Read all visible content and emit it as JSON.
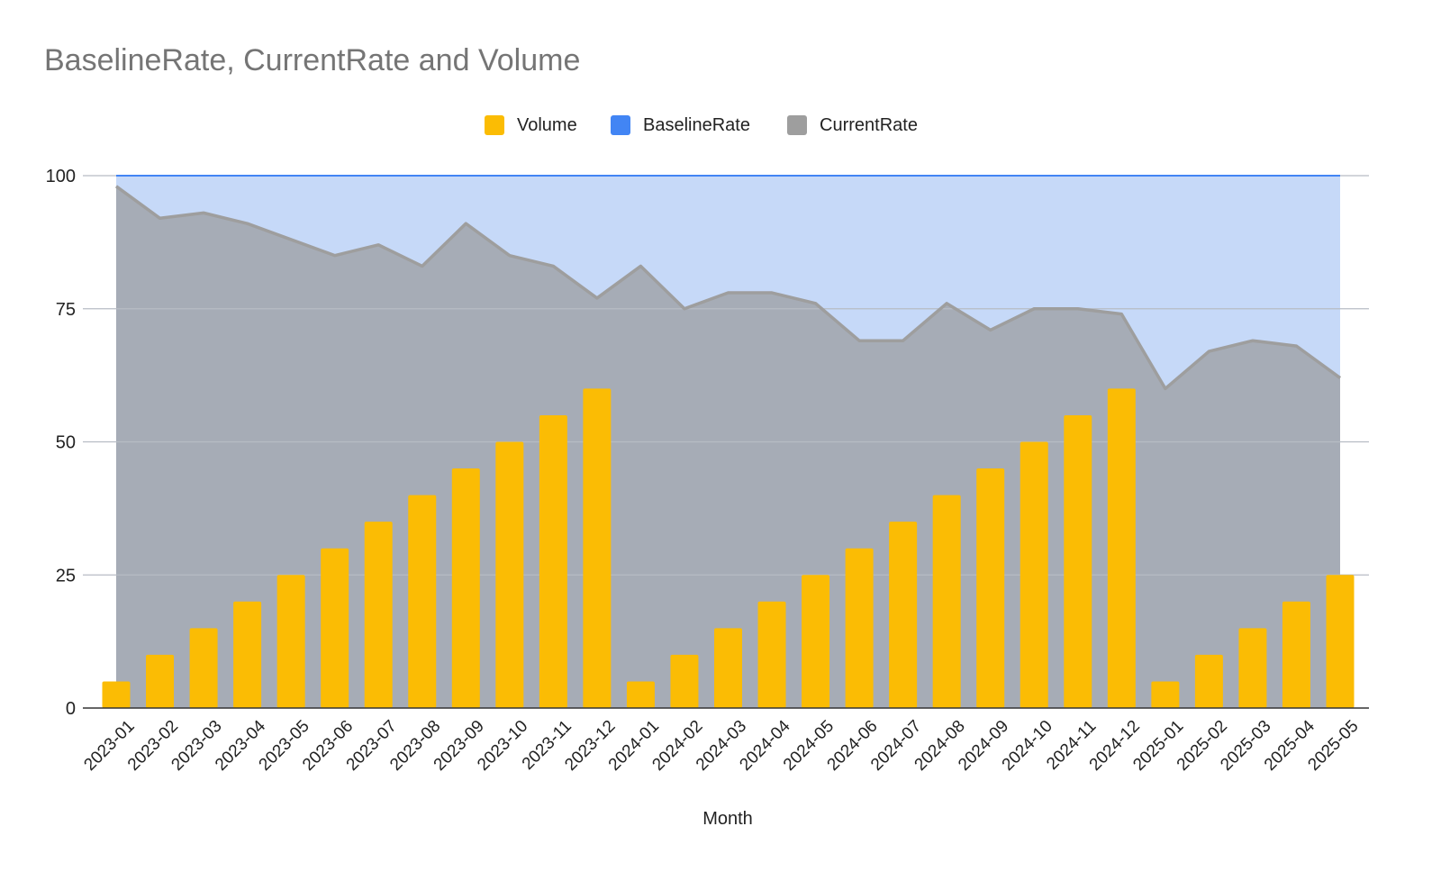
{
  "chart_data": {
    "type": "combo",
    "title": "BaselineRate, CurrentRate and Volume",
    "xlabel": "Month",
    "ylabel": "",
    "ylim": [
      0,
      100
    ],
    "yticks": [
      0,
      25,
      50,
      75,
      100
    ],
    "grid": true,
    "legend_position": "top-center",
    "categories": [
      "2023-01",
      "2023-02",
      "2023-03",
      "2023-04",
      "2023-05",
      "2023-06",
      "2023-07",
      "2023-08",
      "2023-09",
      "2023-10",
      "2023-11",
      "2023-12",
      "2024-01",
      "2024-02",
      "2024-03",
      "2024-04",
      "2024-05",
      "2024-06",
      "2024-07",
      "2024-08",
      "2024-09",
      "2024-10",
      "2024-11",
      "2024-12",
      "2025-01",
      "2025-02",
      "2025-03",
      "2025-04",
      "2025-05"
    ],
    "series": [
      {
        "name": "Volume",
        "kind": "bar",
        "color": "#FBBC04",
        "values": [
          5,
          10,
          15,
          20,
          25,
          30,
          35,
          40,
          45,
          50,
          55,
          60,
          5,
          10,
          15,
          20,
          25,
          30,
          35,
          40,
          45,
          50,
          55,
          60,
          5,
          10,
          15,
          20,
          25
        ]
      },
      {
        "name": "BaselineRate",
        "kind": "area",
        "color": "#4285F4",
        "fill": "#C6D9F8",
        "values": [
          100,
          100,
          100,
          100,
          100,
          100,
          100,
          100,
          100,
          100,
          100,
          100,
          100,
          100,
          100,
          100,
          100,
          100,
          100,
          100,
          100,
          100,
          100,
          100,
          100,
          100,
          100,
          100,
          100
        ]
      },
      {
        "name": "CurrentRate",
        "kind": "area",
        "color": "#9E9E9E",
        "fill": "#A6ACB6",
        "values": [
          98,
          92,
          93,
          91,
          88,
          85,
          87,
          83,
          91,
          85,
          83,
          77,
          83,
          75,
          78,
          78,
          76,
          69,
          69,
          76,
          71,
          75,
          75,
          74,
          60,
          67,
          69,
          68,
          62
        ]
      }
    ]
  }
}
